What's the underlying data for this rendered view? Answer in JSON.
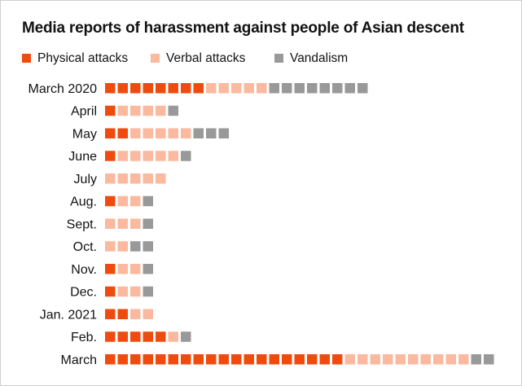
{
  "title": "Media reports of harassment against people of Asian descent",
  "colors": {
    "physical": "#f04b0f",
    "verbal": "#fbb9a0",
    "vandalism": "#999999"
  },
  "legend": [
    {
      "key": "physical",
      "label": "Physical attacks"
    },
    {
      "key": "verbal",
      "label": "Verbal attacks"
    },
    {
      "key": "vandalism",
      "label": "Vandalism"
    }
  ],
  "chart_data": {
    "type": "bar",
    "stacked": true,
    "orientation": "horizontal",
    "unit_squares": true,
    "title": "Media reports of harassment against people of Asian descent",
    "categories": [
      "March 2020",
      "April",
      "May",
      "June",
      "July",
      "Aug.",
      "Sept.",
      "Oct.",
      "Nov.",
      "Dec.",
      "Jan. 2021",
      "Feb.",
      "March"
    ],
    "series": [
      {
        "name": "Physical attacks",
        "key": "physical",
        "values": [
          8,
          1,
          2,
          1,
          0,
          1,
          0,
          0,
          1,
          1,
          2,
          5,
          19
        ]
      },
      {
        "name": "Verbal attacks",
        "key": "verbal",
        "values": [
          5,
          4,
          5,
          5,
          5,
          2,
          3,
          2,
          2,
          2,
          2,
          1,
          10
        ]
      },
      {
        "name": "Vandalism",
        "key": "vandalism",
        "values": [
          8,
          1,
          3,
          1,
          0,
          1,
          1,
          2,
          1,
          1,
          0,
          1,
          2
        ]
      }
    ],
    "legend_position": "top-left",
    "grid": false
  }
}
